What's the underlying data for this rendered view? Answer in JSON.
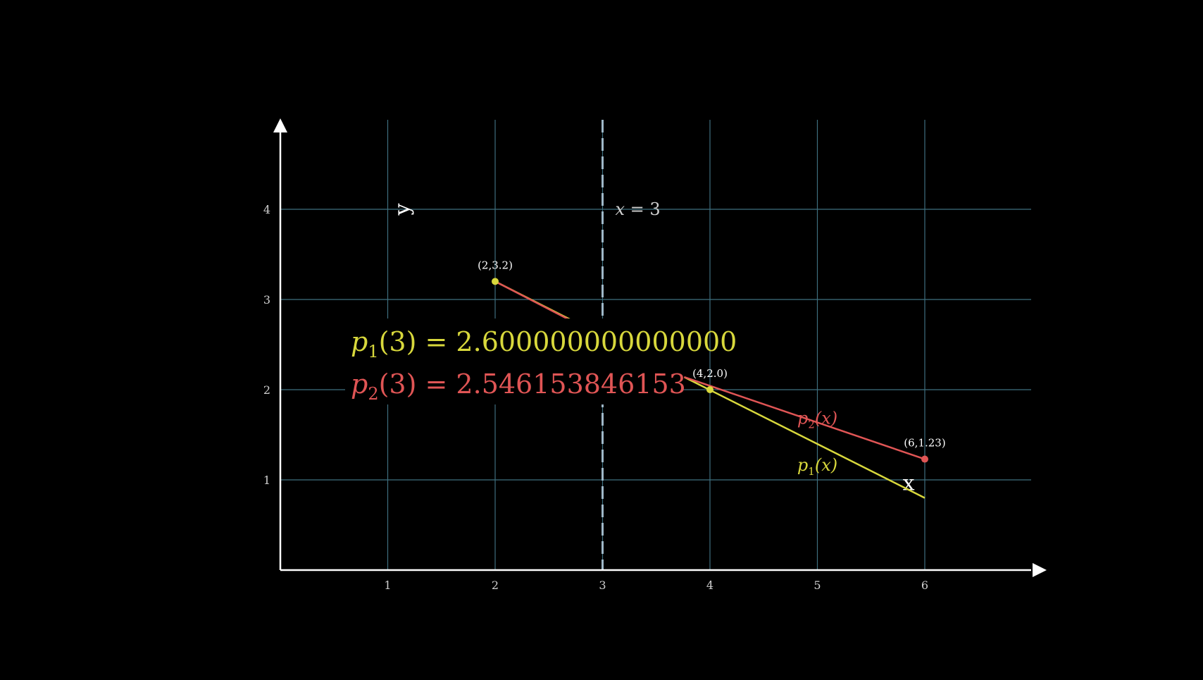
{
  "colors": {
    "background": "#000000",
    "grid": "#3f6f7f",
    "axis": "#ffffff",
    "tick_text": "#cfcfcf",
    "p1": "#d8d83c",
    "p2": "#e05555",
    "vline": "#9fb8c8",
    "point_label": "#ffffff"
  },
  "chart_data": {
    "type": "line",
    "xlim": [
      0,
      7
    ],
    "ylim": [
      0,
      5
    ],
    "x_ticks": [
      "1",
      "2",
      "3",
      "4",
      "5",
      "6"
    ],
    "y_ticks": [
      "1",
      "2",
      "3",
      "4"
    ],
    "grid": true,
    "x_axis_label": "x",
    "y_axis_label": "y",
    "vertical_line": {
      "x": 3,
      "label_math": "x",
      "label_rest": " = 3",
      "style": "dashed"
    },
    "series": [
      {
        "key": "p1",
        "name": "p",
        "name_sub": "1",
        "name_arg": "(x)",
        "points": [
          [
            2,
            3.2
          ],
          [
            2.78,
            2.73
          ]
        ],
        "points_b": [
          [
            3.76,
            2.14
          ],
          [
            6,
            0.8
          ]
        ]
      },
      {
        "key": "p2",
        "name": "p",
        "name_sub": "2",
        "name_arg": "(x)",
        "points": [
          [
            2,
            3.2
          ],
          [
            2.78,
            2.72
          ]
        ],
        "points_b": [
          [
            3.76,
            2.14
          ],
          [
            6,
            1.23
          ]
        ]
      }
    ],
    "markers": [
      {
        "x": 2,
        "y": 3.2,
        "label": "(2,3.2)",
        "color_key": "p1"
      },
      {
        "x": 4,
        "y": 2.0,
        "label": "(4,2.0)",
        "color_key": "p1"
      },
      {
        "x": 6,
        "y": 1.23,
        "label": "(6,1.23)",
        "color_key": "p2"
      }
    ],
    "equations": [
      {
        "key": "p1",
        "func": "p",
        "sub": "1",
        "arg": "(3)",
        "rest": " = 2.600000000000000"
      },
      {
        "key": "p2",
        "func": "p",
        "sub": "2",
        "arg": "(3)",
        "rest": " = 2.546153846153"
      }
    ]
  }
}
